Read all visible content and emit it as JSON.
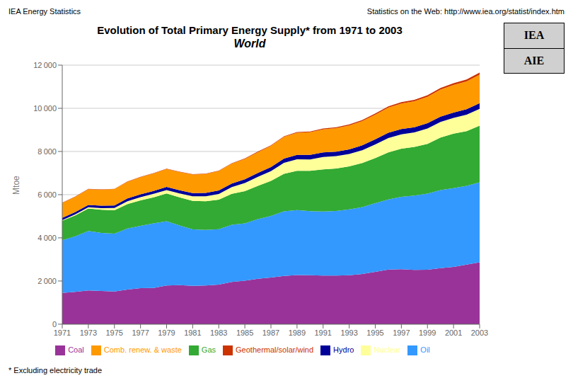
{
  "chart_data": {
    "type": "area",
    "stacked": true,
    "grid": true,
    "legend": "bottom",
    "title": "Evolution of Total Primary Energy Supply* from 1971 to 2003",
    "subtitle": "World",
    "y_label": "Mtoe",
    "annotations": [
      "IEA Energy Statistics",
      "Statistics on the Web: http://www.iea.org/statist/index.htm",
      "* Excluding electricity trade",
      "IEA",
      "AIE"
    ],
    "xlim": [
      1971,
      2003
    ],
    "xticks": [
      1971,
      1973,
      1975,
      1977,
      1979,
      1981,
      1983,
      1985,
      1987,
      1989,
      1991,
      1993,
      1995,
      1997,
      1999,
      2001,
      2003
    ],
    "ylim": [
      0,
      12000
    ],
    "yticks": [
      0,
      {
        "value": 2000,
        "label": "2 000"
      },
      {
        "value": 4000,
        "label": "4 000"
      },
      {
        "value": 6000,
        "label": "6 000"
      },
      {
        "value": 8000,
        "label": "8 000"
      },
      {
        "value": 10000,
        "label": "10 000"
      },
      {
        "value": 12000,
        "label": "12 000"
      }
    ],
    "x": [
      1971,
      1972,
      1973,
      1974,
      1975,
      1976,
      1977,
      1978,
      1979,
      1980,
      1981,
      1982,
      1983,
      1984,
      1985,
      1986,
      1987,
      1988,
      1989,
      1990,
      1991,
      1992,
      1993,
      1994,
      1995,
      1996,
      1997,
      1998,
      1999,
      2000,
      2001,
      2002,
      2003
    ],
    "series": [
      {
        "name": "Coal",
        "color": "#993399",
        "values": [
          1449,
          1499,
          1561,
          1536,
          1516,
          1600,
          1670,
          1681,
          1792,
          1809,
          1780,
          1793,
          1836,
          1956,
          2010,
          2100,
          2161,
          2233,
          2279,
          2269,
          2253,
          2252,
          2272,
          2322,
          2426,
          2530,
          2548,
          2513,
          2523,
          2593,
          2650,
          2762,
          2870
        ]
      },
      {
        "name": "Oil",
        "color": "#3399FF",
        "values": [
          2443,
          2576,
          2756,
          2695,
          2678,
          2834,
          2883,
          2987,
          2973,
          2766,
          2614,
          2573,
          2565,
          2649,
          2657,
          2764,
          2851,
          2997,
          3010,
          2967,
          2970,
          2990,
          3042,
          3100,
          3181,
          3249,
          3353,
          3441,
          3527,
          3615,
          3651,
          3643,
          3703
        ]
      },
      {
        "name": "Gas",
        "color": "#33AA33",
        "values": [
          900,
          967,
          1038,
          1070,
          1082,
          1130,
          1180,
          1208,
          1287,
          1299,
          1318,
          1331,
          1372,
          1437,
          1499,
          1548,
          1623,
          1733,
          1820,
          1871,
          1951,
          1967,
          1994,
          2042,
          2086,
          2179,
          2231,
          2256,
          2298,
          2436,
          2529,
          2538,
          2620
        ]
      },
      {
        "name": "Nuclear",
        "color": "#FFFF99",
        "values": [
          29,
          45,
          59,
          73,
          105,
          131,
          152,
          162,
          163,
          183,
          209,
          225,
          261,
          308,
          371,
          413,
          452,
          509,
          527,
          524,
          574,
          574,
          575,
          596,
          637,
          668,
          665,
          671,
          718,
          724,
          724,
          758,
          784
        ]
      },
      {
        "name": "Hydro",
        "color": "#000099",
        "values": [
          107,
          110,
          113,
          118,
          121,
          128,
          130,
          135,
          143,
          149,
          155,
          160,
          163,
          168,
          176,
          183,
          191,
          200,
          205,
          209,
          208,
          211,
          216,
          225,
          231,
          239,
          241,
          238,
          241,
          249,
          252,
          255,
          261
        ]
      },
      {
        "name": "Comb. renew. & waste",
        "color": "#FF9900",
        "values": [
          687,
          705,
          723,
          740,
          755,
          773,
          792,
          808,
          827,
          843,
          857,
          875,
          898,
          920,
          941,
          962,
          983,
          1006,
          1028,
          1051,
          1066,
          1087,
          1103,
          1123,
          1144,
          1166,
          1185,
          1208,
          1228,
          1249,
          1272,
          1292,
          1316
        ]
      },
      {
        "name": "Geothermal/solar/wind",
        "color": "#CC3300",
        "values": [
          13,
          14,
          15,
          15,
          15,
          16,
          17,
          17,
          18,
          19,
          19,
          20,
          20,
          21,
          22,
          25,
          27,
          30,
          33,
          35,
          40,
          44,
          48,
          51,
          55,
          60,
          66,
          70,
          75,
          80,
          85,
          92,
          100
        ]
      }
    ]
  }
}
